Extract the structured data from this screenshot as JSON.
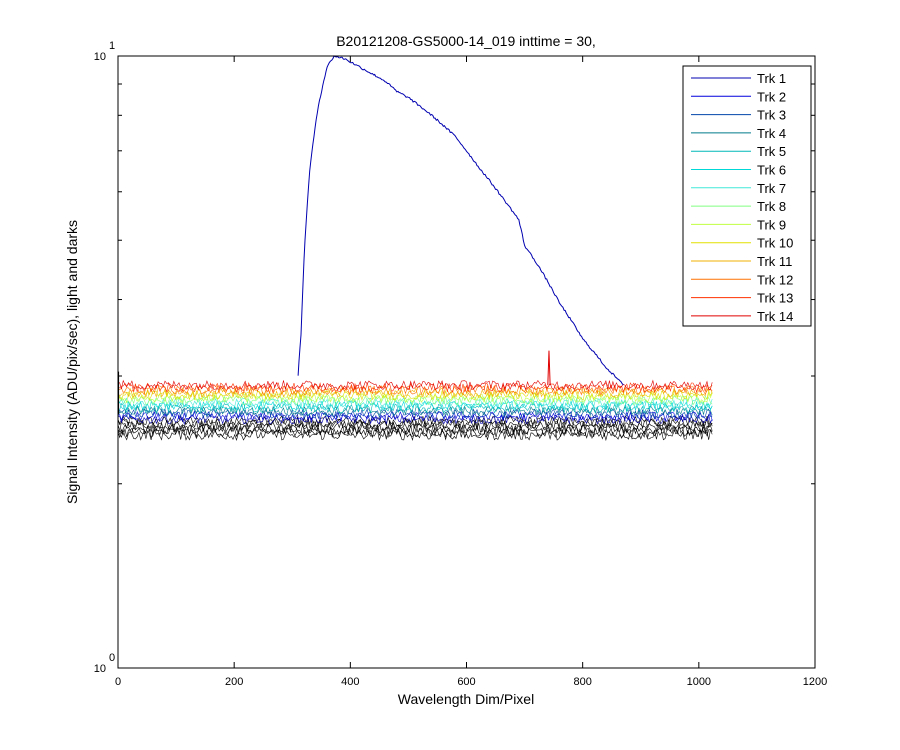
{
  "chart_data": {
    "type": "line",
    "title": "B20121208-GS5000-14_019 inttime = 30,",
    "xlabel": "Wavelength Dim/Pixel",
    "ylabel": "Signal Intensity (ADU/pix/sec), light and darks",
    "xlim": [
      0,
      1200
    ],
    "ylim": [
      1,
      10
    ],
    "yscale": "log",
    "x_ticks": [
      "0",
      "200",
      "400",
      "600",
      "800",
      "1000",
      "1200"
    ],
    "y_tick_labels": [
      {
        "base": "10",
        "exp": "1"
      },
      {
        "base": "10",
        "exp": "0"
      }
    ],
    "grid": false,
    "legend_position": "top-right",
    "legend": [
      "Trk 1",
      "Trk 2",
      "Trk 3",
      "Trk 4",
      "Trk 5",
      "Trk 6",
      "Trk 7",
      "Trk 8",
      "Trk 9",
      "Trk 10",
      "Trk 11",
      "Trk 12",
      "Trk 13",
      "Trk 14"
    ],
    "series_colors": [
      "#0000b0",
      "#0000dd",
      "#0045aa",
      "#007a8a",
      "#00b8b8",
      "#00d8d8",
      "#40e8d8",
      "#80ff80",
      "#c0ff40",
      "#e0e000",
      "#f0b000",
      "#ff7000",
      "#ff3000",
      "#e00000"
    ],
    "light_curve": {
      "series": "Trk 1",
      "x": [
        310,
        315,
        322,
        330,
        345,
        360,
        372,
        390,
        420,
        460,
        480,
        500,
        540,
        580,
        620,
        660,
        690,
        700,
        720,
        760,
        800,
        840,
        870
      ],
      "y": [
        3.0,
        3.5,
        5.0,
        6.5,
        8.3,
        9.6,
        10.0,
        9.9,
        9.55,
        9.1,
        8.75,
        8.55,
        8.0,
        7.4,
        6.6,
        5.9,
        5.4,
        4.9,
        4.6,
        3.95,
        3.45,
        3.1,
        2.9
      ]
    },
    "dark_levels": {
      "x_range": [
        0,
        1024
      ],
      "trk_14": 2.9,
      "trk_1": 2.55
    },
    "spike": {
      "x": 742,
      "y": 3.3,
      "series": "Trk 14"
    }
  }
}
